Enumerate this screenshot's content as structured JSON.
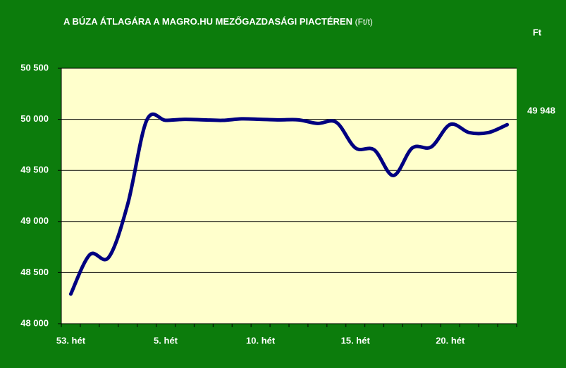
{
  "chart_data": {
    "type": "line",
    "title": "A BÚZA ÁTLAGÁRA A MAGRO.HU MEZŐGAZDASÁGI PIACTÉREN",
    "subtitle": "(Ft/t)",
    "unit": "Ft",
    "categories": [
      "53. hét",
      null,
      null,
      null,
      null,
      "5. hét",
      null,
      null,
      null,
      null,
      "10. hét",
      null,
      null,
      null,
      null,
      "15. hét",
      null,
      null,
      null,
      null,
      "20. hét",
      null,
      null,
      null
    ],
    "values": [
      48290,
      48675,
      48650,
      49170,
      49990,
      49990,
      50000,
      49995,
      49990,
      50005,
      50000,
      49995,
      49995,
      49960,
      49970,
      49720,
      49700,
      49450,
      49720,
      49730,
      49950,
      49870,
      49870,
      49948
    ],
    "value_labels": [
      null,
      null,
      null,
      null,
      null,
      null,
      null,
      null,
      null,
      null,
      null,
      null,
      null,
      null,
      null,
      null,
      null,
      null,
      null,
      null,
      null,
      null,
      null,
      "49 948"
    ],
    "color": "#000080",
    "ylim": [
      48000,
      50500
    ],
    "yticks": [
      {
        "value": 48000,
        "label": "48 000"
      },
      {
        "value": 48500,
        "label": "48 500"
      },
      {
        "value": 49000,
        "label": "49 000"
      },
      {
        "value": 49500,
        "label": "49 500"
      },
      {
        "value": 50000,
        "label": "50 000"
      },
      {
        "value": 50500,
        "label": "50 500"
      }
    ],
    "grid": true
  }
}
